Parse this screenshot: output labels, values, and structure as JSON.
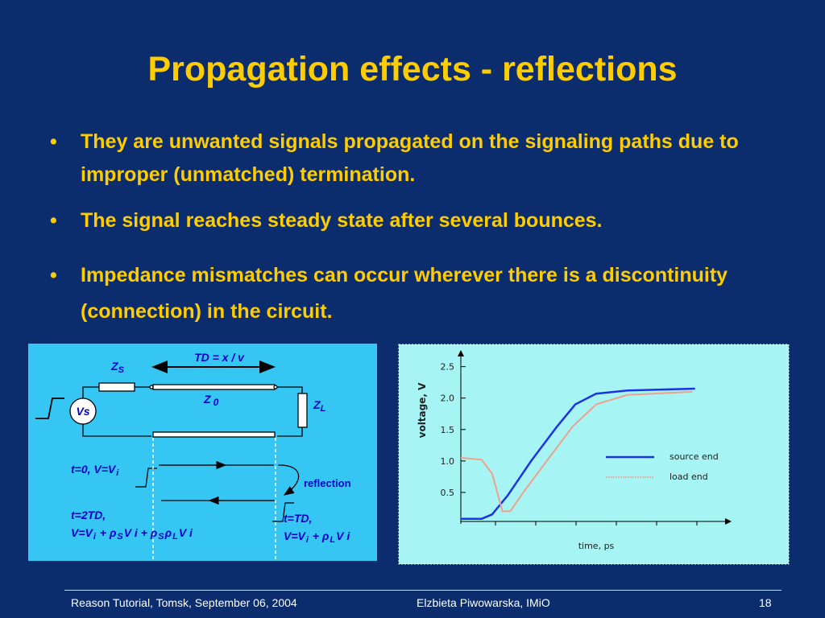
{
  "slide": {
    "title": "Propagation effects - reflections",
    "bullets": [
      "They are unwanted signals propagated on the signaling paths due to improper (unmatched) termination.",
      "The signal reaches steady state after several bounces.",
      "Impedance mismatches can occur wherever there is a discontinuity (connection) in the circuit."
    ],
    "footer": {
      "left": "Reason Tutorial, Tomsk, September 06, 2004",
      "center": "Elzbieta Piwowarska, IMiO",
      "page": "18"
    }
  },
  "diagram": {
    "td_label": "TD = x / v",
    "zs": [
      "Z",
      "S"
    ],
    "z0": [
      "Z",
      "0"
    ],
    "zl": [
      "Z",
      "L"
    ],
    "vs": "Vs",
    "reflection": "reflection",
    "t0": [
      "t=0,  V=V",
      "i"
    ],
    "t2td": "t=2TD,",
    "t2td_v": [
      "V=V",
      "i",
      " + ρ",
      "S",
      "V i + ρ",
      "S",
      "ρ",
      "L",
      "V i"
    ],
    "ttd": "t=TD,",
    "ttd_v": [
      "V=V",
      "i",
      " + ρ",
      "L",
      "V i"
    ]
  },
  "chart_data": {
    "type": "line",
    "x_label": "time, ps",
    "y_label": "voltage, V",
    "xlim": [
      0,
      100
    ],
    "ylim": [
      0,
      2.7
    ],
    "yticks": [
      0.5,
      {
        "value": 1,
        "label": "1.0"
      },
      1.5,
      {
        "value": 2,
        "label": "2.0"
      },
      2.5
    ],
    "series": [
      {
        "name": "source end",
        "color": "#1c32e6",
        "x": [
          0,
          8,
          12,
          18,
          27,
          37,
          44,
          52,
          64,
          90
        ],
        "values": [
          0.08,
          0.08,
          0.15,
          0.45,
          1.0,
          1.55,
          1.9,
          2.07,
          2.12,
          2.15
        ]
      },
      {
        "name": "load end",
        "color": "#f0a08c",
        "x": [
          0,
          8,
          12,
          16,
          19,
          24,
          33,
          43,
          52,
          64,
          89
        ],
        "values": [
          1.05,
          1.02,
          0.8,
          0.2,
          0.2,
          0.5,
          1.0,
          1.55,
          1.9,
          2.05,
          2.1
        ]
      }
    ]
  }
}
